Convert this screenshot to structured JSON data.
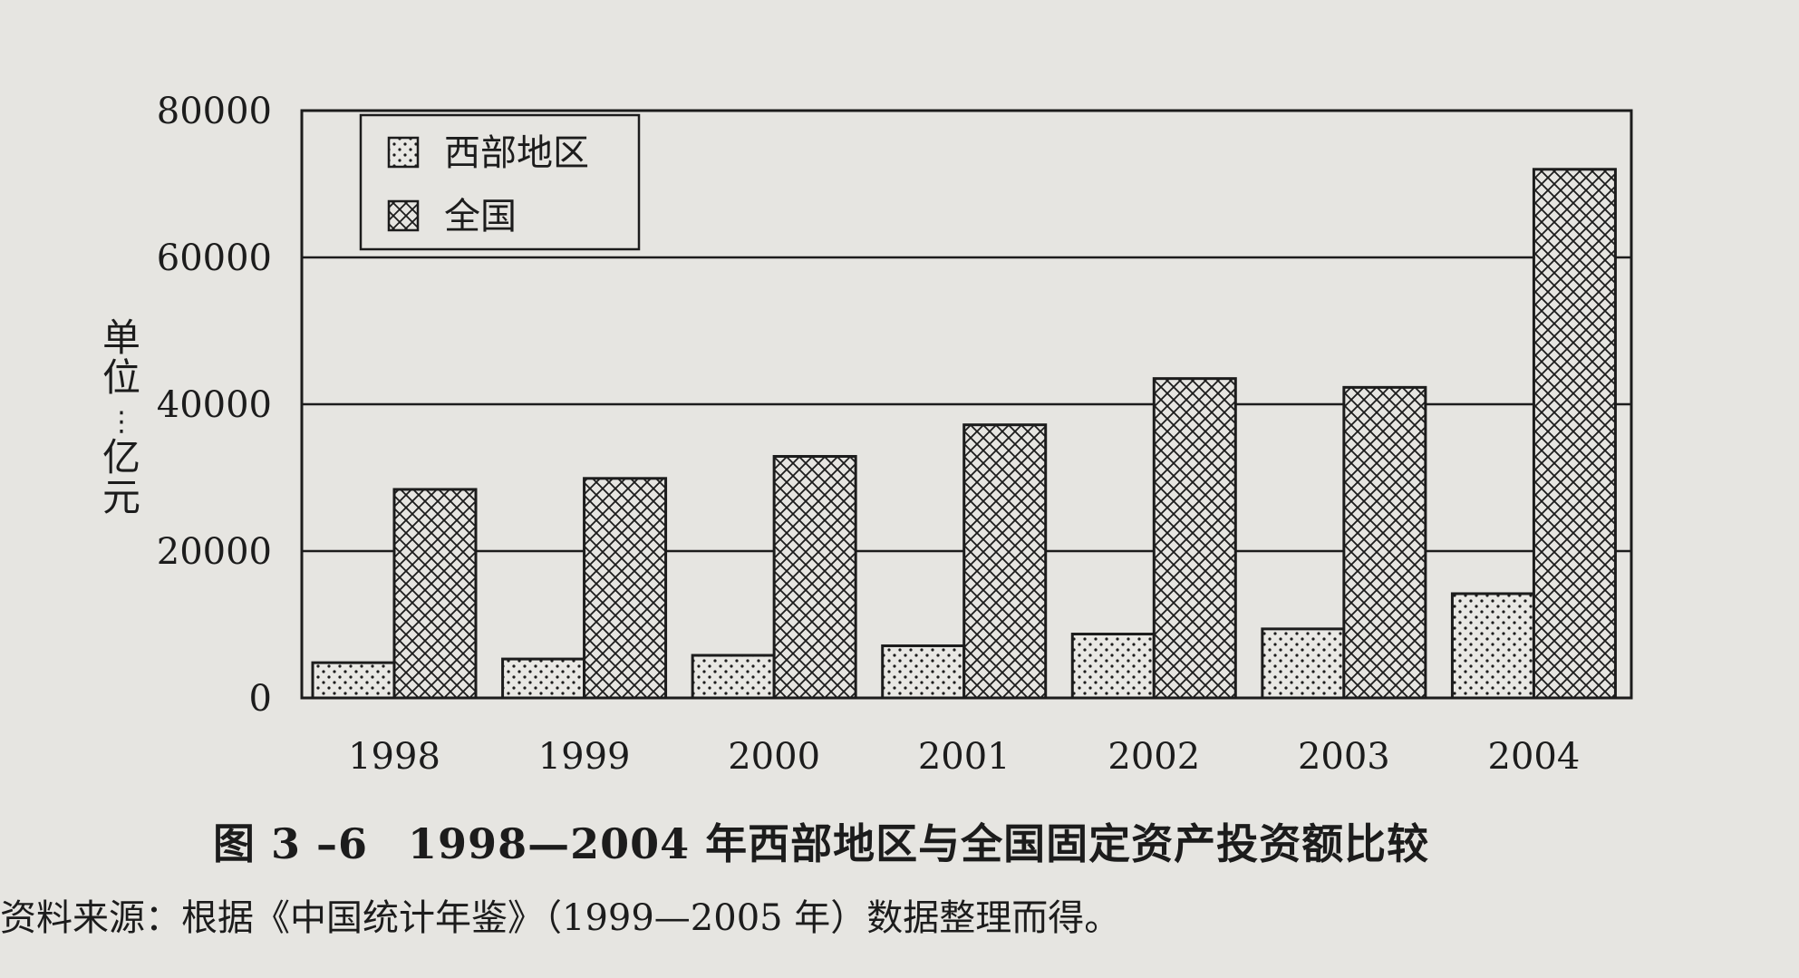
{
  "chart_data": {
    "type": "bar",
    "categories": [
      "1998",
      "1999",
      "2000",
      "2001",
      "2002",
      "2003",
      "2004"
    ],
    "series": [
      {
        "name": "西部地区",
        "values": [
          4800,
          5300,
          5800,
          7100,
          8700,
          9400,
          14200
        ],
        "pattern": "dots"
      },
      {
        "name": "全国",
        "values": [
          28400,
          29900,
          32900,
          37200,
          43500,
          42300,
          72000
        ],
        "pattern": "crosshatch"
      }
    ],
    "ylim": [
      0,
      80000
    ],
    "yticks": [
      0,
      20000,
      40000,
      60000,
      80000
    ],
    "ylabel": "单位：亿元",
    "xlabel": "",
    "grid": true,
    "legend_position": "top-left"
  },
  "caption": {
    "number": "图 3 –6",
    "title": "1998—2004 年西部地区与全国固定资产投资额比较"
  },
  "source_note": "资料来源：根据《中国统计年鉴》（1999—2005 年）数据整理而得。",
  "colors": {
    "background": "#e6e5e1",
    "ink": "#1c1c1c"
  }
}
